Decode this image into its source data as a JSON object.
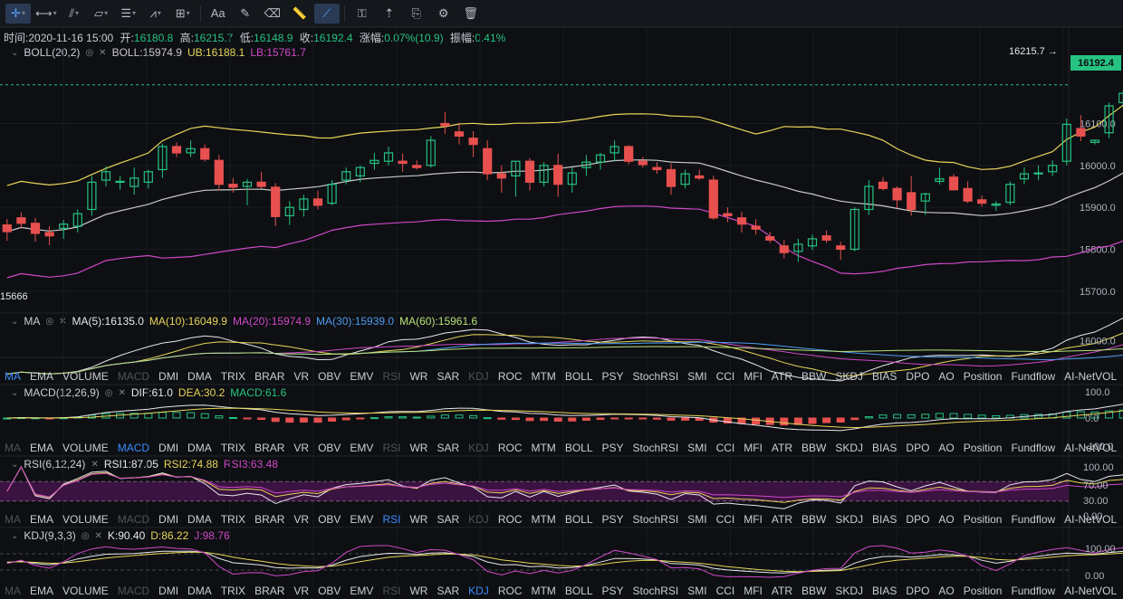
{
  "toolbar": {
    "tools": [
      {
        "name": "crosshair-icon",
        "glyph": "✛",
        "active": true,
        "caret": true
      },
      {
        "name": "horizontal-line-icon",
        "glyph": "⟷",
        "active": false,
        "caret": true
      },
      {
        "name": "trend-line-icon",
        "glyph": "⫽",
        "active": false,
        "caret": true
      },
      {
        "name": "shape-icon",
        "glyph": "▱",
        "active": false,
        "caret": true
      },
      {
        "name": "fib-icon",
        "glyph": "☰",
        "active": false,
        "caret": true
      },
      {
        "name": "wave-icon",
        "glyph": "⩘",
        "active": false,
        "caret": true
      },
      {
        "name": "measure-icon",
        "glyph": "⊞",
        "active": false,
        "caret": true
      },
      {
        "name": "text-icon",
        "glyph": "Aa",
        "active": false,
        "caret": false
      },
      {
        "name": "brush-icon",
        "glyph": "✎",
        "active": false,
        "caret": false
      },
      {
        "name": "eraser-icon",
        "glyph": "⌫",
        "active": false,
        "caret": false
      },
      {
        "name": "ruler-icon",
        "glyph": "📏",
        "active": false,
        "caret": false
      },
      {
        "name": "magnet-icon",
        "glyph": "⟋",
        "active": true,
        "caret": false
      },
      {
        "name": "lock-icon",
        "glyph": "⚿",
        "active": false,
        "caret": false
      },
      {
        "name": "visibility-icon",
        "glyph": "⇡",
        "active": false,
        "caret": false
      },
      {
        "name": "copy-icon",
        "glyph": "⎘",
        "active": false,
        "caret": false
      },
      {
        "name": "settings-icon",
        "glyph": "⚙",
        "active": false,
        "caret": false
      },
      {
        "name": "delete-icon",
        "glyph": "🗑",
        "active": false,
        "caret": false
      }
    ]
  },
  "ohlc": {
    "time_label": "时间:",
    "time": "2020-11-16 15:00",
    "open_label": "开:",
    "open": "16180.8",
    "high_label": "高:",
    "high": "16215.7",
    "low_label": "低:",
    "low": "16148.9",
    "close_label": "收:",
    "close": "16192.4",
    "change_label": "涨幅:",
    "change": "0.07%(10.9)",
    "amp_label": "振幅:",
    "amp": "0.41%"
  },
  "boll_legend": {
    "title": "BOLL(20,2)",
    "mid": "BOLL:15974.9",
    "ub": "UB:16188.1",
    "lb": "LB:15761.7"
  },
  "ma_legend": {
    "title": "MA",
    "ma5": "MA(5):16135.0",
    "ma10": "MA(10):16049.9",
    "ma20": "MA(20):15974.9",
    "ma30": "MA(30):15939.0",
    "ma60": "MA(60):15961.6"
  },
  "macd_legend": {
    "title": "MACD(12,26,9)",
    "dif": "DIF:61.0",
    "dea": "DEA:30.2",
    "macd": "MACD:61.6"
  },
  "rsi_legend": {
    "title": "RSI(6,12,24)",
    "rsi1": "RSI1:87.05",
    "rsi2": "RSI2:74.88",
    "rsi3": "RSI3:63.48"
  },
  "kdj_legend": {
    "title": "KDJ(9,3,3)",
    "k": "K:90.40",
    "d": "D:86.22",
    "j": "J:98.76"
  },
  "price_tag": "16192.4",
  "high_marker": "16215.7 →",
  "low_marker": "15666",
  "indicator_tabs": [
    "MA",
    "EMA",
    "VOLUME",
    "MACD",
    "DMI",
    "DMA",
    "TRIX",
    "BRAR",
    "VR",
    "OBV",
    "EMV",
    "RSI",
    "WR",
    "SAR",
    "KDJ",
    "ROC",
    "MTM",
    "BOLL",
    "PSY",
    "StochRSI",
    "SMI",
    "CCI",
    "MFI",
    "ATR",
    "BBW",
    "SKDJ",
    "BIAS",
    "DPO",
    "AO",
    "Position",
    "Fundflow",
    "AI-NetVOL"
  ],
  "tab_rows": [
    {
      "active": "MA",
      "dim": [
        "MACD",
        "RSI",
        "KDJ"
      ]
    },
    {
      "active": "MACD",
      "dim": [
        "MA",
        "RSI",
        "KDJ"
      ]
    },
    {
      "active": "RSI",
      "dim": [
        "MA",
        "MACD",
        "KDJ"
      ]
    },
    {
      "active": "KDJ",
      "dim": [
        "MA",
        "MACD",
        "RSI"
      ]
    }
  ],
  "colors": {
    "up": "#26c281",
    "down": "#e8504f",
    "boll_mid": "#c9c9c9",
    "boll_ub": "#e7d55a",
    "boll_lb": "#d048c8",
    "bg": "#0d0f12"
  },
  "chart_data": [
    {
      "type": "candlestick",
      "title": "BOLL(20,2)",
      "ylim": [
        15650,
        16250
      ],
      "yticks": [
        "16192.4",
        "16100.0",
        "16000.0",
        "15900.0",
        "15800.0",
        "15700.0"
      ],
      "candles": [
        [
          15858,
          15872,
          15820,
          15842
        ],
        [
          15875,
          15888,
          15850,
          15862
        ],
        [
          15862,
          15875,
          15818,
          15838
        ],
        [
          15840,
          15855,
          15810,
          15832
        ],
        [
          15850,
          15870,
          15825,
          15860
        ],
        [
          15855,
          15895,
          15840,
          15885
        ],
        [
          15895,
          15975,
          15880,
          15960
        ],
        [
          15965,
          15998,
          15950,
          15985
        ],
        [
          15960,
          15975,
          15942,
          15962
        ],
        [
          15950,
          15995,
          15930,
          15970
        ],
        [
          15960,
          15990,
          15945,
          15985
        ],
        [
          15990,
          16052,
          15970,
          16045
        ],
        [
          16045,
          16055,
          16020,
          16030
        ],
        [
          16030,
          16060,
          16020,
          16040
        ],
        [
          16040,
          16050,
          16010,
          16015
        ],
        [
          16012,
          16025,
          15940,
          15955
        ],
        [
          15955,
          15970,
          15935,
          15948
        ],
        [
          15950,
          15968,
          15905,
          15960
        ],
        [
          15960,
          15985,
          15945,
          15950
        ],
        [
          15948,
          15958,
          15855,
          15878
        ],
        [
          15880,
          15915,
          15858,
          15900
        ],
        [
          15895,
          15930,
          15878,
          15920
        ],
        [
          15920,
          15940,
          15895,
          15905
        ],
        [
          15910,
          15965,
          15905,
          15955
        ],
        [
          15965,
          15995,
          15955,
          15985
        ],
        [
          15975,
          16000,
          15960,
          15995
        ],
        [
          16005,
          16030,
          15990,
          16012
        ],
        [
          16010,
          16045,
          16000,
          16030
        ],
        [
          16010,
          16028,
          15985,
          16005
        ],
        [
          16000,
          16012,
          15990,
          15995
        ],
        [
          16000,
          16070,
          15995,
          16060
        ],
        [
          16100,
          16128,
          16075,
          16095
        ],
        [
          16080,
          16102,
          16050,
          16070
        ],
        [
          16065,
          16082,
          16020,
          16050
        ],
        [
          16040,
          16060,
          15965,
          15980
        ],
        [
          15980,
          16000,
          15935,
          15970
        ],
        [
          15975,
          16010,
          15925,
          16010
        ],
        [
          16010,
          16018,
          15940,
          15960
        ],
        [
          15960,
          16008,
          15950,
          16000
        ],
        [
          16000,
          16028,
          15925,
          15955
        ],
        [
          15955,
          15995,
          15935,
          15982
        ],
        [
          15995,
          16025,
          15975,
          16008
        ],
        [
          16008,
          16030,
          15990,
          16025
        ],
        [
          16030,
          16060,
          16010,
          16045
        ],
        [
          16045,
          16048,
          16002,
          16010
        ],
        [
          16010,
          16020,
          15995,
          16002
        ],
        [
          15995,
          16008,
          15980,
          15990
        ],
        [
          15990,
          16005,
          15930,
          15950
        ],
        [
          15955,
          15990,
          15945,
          15980
        ],
        [
          15975,
          15990,
          15965,
          15970
        ],
        [
          15965,
          15975,
          15870,
          15875
        ],
        [
          15885,
          15900,
          15865,
          15880
        ],
        [
          15875,
          15890,
          15840,
          15860
        ],
        [
          15855,
          15872,
          15835,
          15848
        ],
        [
          15830,
          15842,
          15815,
          15822
        ],
        [
          15808,
          15822,
          15778,
          15792
        ],
        [
          15795,
          15825,
          15770,
          15812
        ],
        [
          15808,
          15835,
          15798,
          15825
        ],
        [
          15832,
          15845,
          15815,
          15822
        ],
        [
          15808,
          15818,
          15775,
          15800
        ],
        [
          15800,
          15900,
          15795,
          15895
        ],
        [
          15895,
          15965,
          15882,
          15950
        ],
        [
          15960,
          15972,
          15940,
          15945
        ],
        [
          15945,
          15950,
          15898,
          15918
        ],
        [
          15935,
          15975,
          15880,
          15895
        ],
        [
          15915,
          15935,
          15882,
          15932
        ],
        [
          15962,
          15995,
          15955,
          15968
        ],
        [
          15972,
          15980,
          15940,
          15942
        ],
        [
          15945,
          15962,
          15910,
          15915
        ],
        [
          15918,
          15928,
          15902,
          15910
        ],
        [
          15905,
          15915,
          15892,
          15908
        ],
        [
          15912,
          15962,
          15905,
          15955
        ],
        [
          15968,
          15995,
          15955,
          15980
        ],
        [
          15980,
          16000,
          15965,
          15982
        ],
        [
          15985,
          16012,
          15975,
          16000
        ],
        [
          16010,
          16112,
          16000,
          16098
        ],
        [
          16088,
          16120,
          16058,
          16070
        ],
        [
          16055,
          16062,
          16050,
          16060
        ],
        [
          16078,
          16150,
          16065,
          16142
        ],
        [
          16150,
          16178,
          16140,
          16172
        ],
        [
          16180,
          16216,
          16148,
          16192
        ]
      ]
    },
    {
      "type": "line",
      "title": "MA",
      "ylim": [
        15900,
        16050
      ],
      "yticks": [
        "16000.0"
      ],
      "series": [
        {
          "name": "MA(5)",
          "color": "#e6e8eb"
        },
        {
          "name": "MA(10)",
          "color": "#e7d55a"
        },
        {
          "name": "MA(20)",
          "color": "#d048c8"
        },
        {
          "name": "MA(30)",
          "color": "#4d9cf0"
        },
        {
          "name": "MA(60)",
          "color": "#b9e07a"
        }
      ]
    },
    {
      "type": "bar",
      "title": "MACD(12,26,9)",
      "ylim": [
        -100,
        100
      ],
      "yticks": [
        "100.0",
        "0.0",
        "-100.0"
      ]
    },
    {
      "type": "line",
      "title": "RSI(6,12,24)",
      "ylim": [
        0,
        100
      ],
      "yticks": [
        "100.00",
        "70.00",
        "30.00",
        "0.00"
      ]
    },
    {
      "type": "line",
      "title": "KDJ(9,3,3)",
      "ylim": [
        0,
        100
      ],
      "yticks": [
        "100.00",
        "0.00"
      ]
    }
  ]
}
